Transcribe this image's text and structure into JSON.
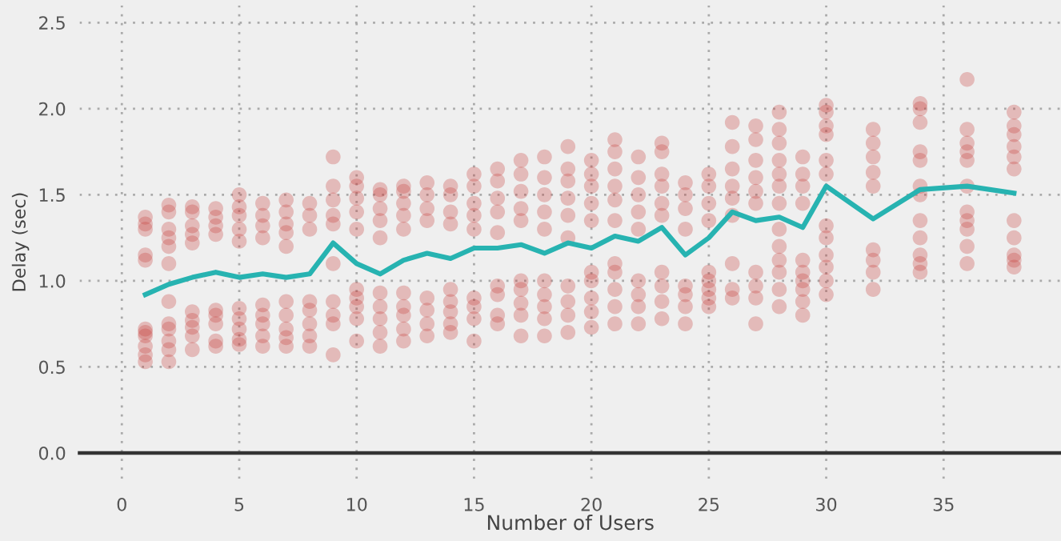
{
  "chart_data": {
    "type": "scatter",
    "xlabel": "Number of Users",
    "ylabel": "Delay (sec)",
    "xlim": [
      -1.8,
      40
    ],
    "ylim": [
      -0.15,
      2.6
    ],
    "xticks": [
      0,
      5,
      10,
      15,
      20,
      25,
      30,
      35
    ],
    "yticks": [
      {
        "value": 0,
        "label": "0.0"
      },
      0.5,
      {
        "value": 1,
        "label": "1.0"
      },
      1.5,
      {
        "value": 2,
        "label": "2.0"
      },
      2.5
    ],
    "grid": true,
    "marker": "circle",
    "legend": false,
    "series": [
      {
        "color": "#c8403c",
        "x": [
          1,
          1,
          1,
          1,
          1,
          1,
          1,
          1,
          1,
          1,
          1,
          2,
          2,
          2,
          2,
          2,
          2,
          2,
          2,
          2,
          2,
          2,
          2,
          3,
          3,
          3,
          3,
          3,
          3,
          3,
          3,
          3,
          3,
          4,
          4,
          4,
          4,
          4,
          4,
          4,
          4,
          4,
          5,
          5,
          5,
          5,
          5,
          5,
          5,
          5,
          5,
          5,
          6,
          6,
          6,
          6,
          6,
          6,
          6,
          6,
          6,
          7,
          7,
          7,
          7,
          7,
          7,
          7,
          7,
          7,
          7,
          8,
          8,
          8,
          8,
          8,
          8,
          8,
          8,
          9,
          9,
          9,
          9,
          9,
          9,
          9,
          9,
          9,
          9,
          10,
          10,
          10,
          10,
          10,
          10,
          10,
          10,
          10,
          10,
          11,
          11,
          11,
          11,
          11,
          11,
          11,
          11,
          11,
          11,
          12,
          12,
          12,
          12,
          12,
          12,
          12,
          12,
          12,
          12,
          13,
          13,
          13,
          13,
          13,
          13,
          13,
          13,
          14,
          14,
          14,
          14,
          14,
          14,
          14,
          14,
          14,
          15,
          15,
          15,
          15,
          15,
          15,
          15,
          15,
          15,
          16,
          16,
          16,
          16,
          16,
          16,
          16,
          16,
          16,
          17,
          17,
          17,
          17,
          17,
          17,
          17,
          17,
          17,
          17,
          18,
          18,
          18,
          18,
          18,
          18,
          18,
          18,
          18,
          18,
          19,
          19,
          19,
          19,
          19,
          19,
          19,
          19,
          19,
          19,
          20,
          20,
          20,
          20,
          20,
          20,
          20,
          20,
          20,
          20,
          21,
          21,
          21,
          21,
          21,
          21,
          21,
          21,
          21,
          21,
          21,
          22,
          22,
          22,
          22,
          22,
          22,
          22,
          22,
          22,
          23,
          23,
          23,
          23,
          23,
          23,
          23,
          23,
          23,
          23,
          24,
          24,
          24,
          24,
          24,
          24,
          24,
          24,
          25,
          25,
          25,
          25,
          25,
          25,
          25,
          25,
          25,
          26,
          26,
          26,
          26,
          26,
          26,
          26,
          26,
          26,
          27,
          27,
          27,
          27,
          27,
          27,
          27,
          27,
          27,
          27,
          28,
          28,
          28,
          28,
          28,
          28,
          28,
          28,
          28,
          28,
          28,
          28,
          28,
          29,
          29,
          29,
          29,
          29,
          29,
          29,
          29,
          29,
          29,
          30,
          30,
          30,
          30,
          30,
          30,
          30,
          30,
          30,
          30,
          30,
          30,
          32,
          32,
          32,
          32,
          32,
          32,
          32,
          32,
          32,
          34,
          34,
          34,
          34,
          34,
          34,
          34,
          34,
          34,
          34,
          34,
          34,
          36,
          36,
          36,
          36,
          36,
          36,
          36,
          36,
          36,
          36,
          36,
          38,
          38,
          38,
          38,
          38,
          38,
          38,
          38,
          38,
          38,
          38
        ],
        "values": [
          1.12,
          1.15,
          1.3,
          1.33,
          1.37,
          0.53,
          0.57,
          0.62,
          0.68,
          0.7,
          0.72,
          1.1,
          1.2,
          1.25,
          1.3,
          1.4,
          1.44,
          0.53,
          0.6,
          0.65,
          0.72,
          0.75,
          0.88,
          1.22,
          1.27,
          1.32,
          1.4,
          1.43,
          0.6,
          0.68,
          0.73,
          0.77,
          0.82,
          1.27,
          1.32,
          1.37,
          1.42,
          0.62,
          0.65,
          0.75,
          0.8,
          0.83,
          1.23,
          1.3,
          1.38,
          1.43,
          1.5,
          0.63,
          0.66,
          0.72,
          0.78,
          0.84,
          1.25,
          1.32,
          1.38,
          1.45,
          0.62,
          0.68,
          0.75,
          0.8,
          0.86,
          1.2,
          1.28,
          1.33,
          1.4,
          1.47,
          0.62,
          0.67,
          0.72,
          0.8,
          0.88,
          1.3,
          1.38,
          1.45,
          0.62,
          0.68,
          0.75,
          0.83,
          0.88,
          1.1,
          1.33,
          1.38,
          1.47,
          1.55,
          1.72,
          0.57,
          0.75,
          0.8,
          0.88,
          1.3,
          1.4,
          1.48,
          1.55,
          1.6,
          0.65,
          0.78,
          0.85,
          0.9,
          0.95,
          1.25,
          1.35,
          1.42,
          1.5,
          1.53,
          0.62,
          0.7,
          0.78,
          0.85,
          0.93,
          1.3,
          1.38,
          1.45,
          1.52,
          1.55,
          0.65,
          0.72,
          0.8,
          0.85,
          0.93,
          1.35,
          1.42,
          1.5,
          1.57,
          0.68,
          0.75,
          0.83,
          0.9,
          1.33,
          1.4,
          1.5,
          1.55,
          0.7,
          0.75,
          0.82,
          0.88,
          0.95,
          1.3,
          1.38,
          1.45,
          1.55,
          1.62,
          0.65,
          0.78,
          0.85,
          0.9,
          1.28,
          1.4,
          1.48,
          1.58,
          1.65,
          0.75,
          0.8,
          0.92,
          0.97,
          1.35,
          1.42,
          1.52,
          1.62,
          1.7,
          0.68,
          0.8,
          0.87,
          0.95,
          1.0,
          1.3,
          1.4,
          1.5,
          1.6,
          1.72,
          0.68,
          0.78,
          0.85,
          0.92,
          1.0,
          1.25,
          1.38,
          1.48,
          1.58,
          1.65,
          1.78,
          0.7,
          0.8,
          0.88,
          0.97,
          1.35,
          1.45,
          1.55,
          1.62,
          1.7,
          0.73,
          0.82,
          0.9,
          1.0,
          1.05,
          1.35,
          1.47,
          1.55,
          1.65,
          1.75,
          1.82,
          0.75,
          0.85,
          0.95,
          1.05,
          1.1,
          1.3,
          1.4,
          1.5,
          1.6,
          1.72,
          0.75,
          0.85,
          0.92,
          1.0,
          1.38,
          1.45,
          1.55,
          1.62,
          1.75,
          1.8,
          0.78,
          0.88,
          0.97,
          1.05,
          1.3,
          1.42,
          1.5,
          1.57,
          0.75,
          0.85,
          0.92,
          0.97,
          1.35,
          1.45,
          1.55,
          1.62,
          0.85,
          0.9,
          0.95,
          1.0,
          1.05,
          1.38,
          1.48,
          1.55,
          1.65,
          1.78,
          1.92,
          0.9,
          0.95,
          1.1,
          1.45,
          1.52,
          1.6,
          1.7,
          1.82,
          1.9,
          0.75,
          0.9,
          0.97,
          1.05,
          1.45,
          1.55,
          1.62,
          1.7,
          1.8,
          1.88,
          1.98,
          0.85,
          0.95,
          1.05,
          1.12,
          1.2,
          1.3,
          1.45,
          1.55,
          1.62,
          1.72,
          0.8,
          0.88,
          0.95,
          1.0,
          1.05,
          1.12,
          1.62,
          1.7,
          1.85,
          1.9,
          1.98,
          2.02,
          0.92,
          1.0,
          1.08,
          1.15,
          1.25,
          1.32,
          1.55,
          1.63,
          1.72,
          1.8,
          1.88,
          0.95,
          1.05,
          1.12,
          1.18,
          1.5,
          1.55,
          1.7,
          1.75,
          1.92,
          2.0,
          2.03,
          1.05,
          1.1,
          1.15,
          1.25,
          1.35,
          1.4,
          1.55,
          1.7,
          1.75,
          1.8,
          1.88,
          2.17,
          1.1,
          1.2,
          1.3,
          1.35,
          1.35,
          1.65,
          1.72,
          1.78,
          1.85,
          1.9,
          1.98,
          1.08,
          1.12,
          1.15,
          1.25
        ]
      },
      {
        "type": "line",
        "color": "#27b3b1",
        "marker": "none",
        "x": [
          1,
          2,
          3,
          4,
          5,
          6,
          7,
          8,
          9,
          10,
          11,
          12,
          13,
          14,
          15,
          16,
          17,
          18,
          19,
          20,
          21,
          22,
          23,
          24,
          25,
          26,
          27,
          28,
          29,
          30,
          32,
          34,
          36,
          38
        ],
        "values": [
          0.92,
          0.98,
          1.02,
          1.05,
          1.02,
          1.04,
          1.02,
          1.04,
          1.22,
          1.1,
          1.04,
          1.12,
          1.16,
          1.13,
          1.19,
          1.19,
          1.21,
          1.16,
          1.22,
          1.19,
          1.26,
          1.23,
          1.31,
          1.15,
          1.25,
          1.4,
          1.35,
          1.37,
          1.31,
          1.55,
          1.36,
          1.53,
          1.55,
          1.51
        ]
      }
    ]
  }
}
